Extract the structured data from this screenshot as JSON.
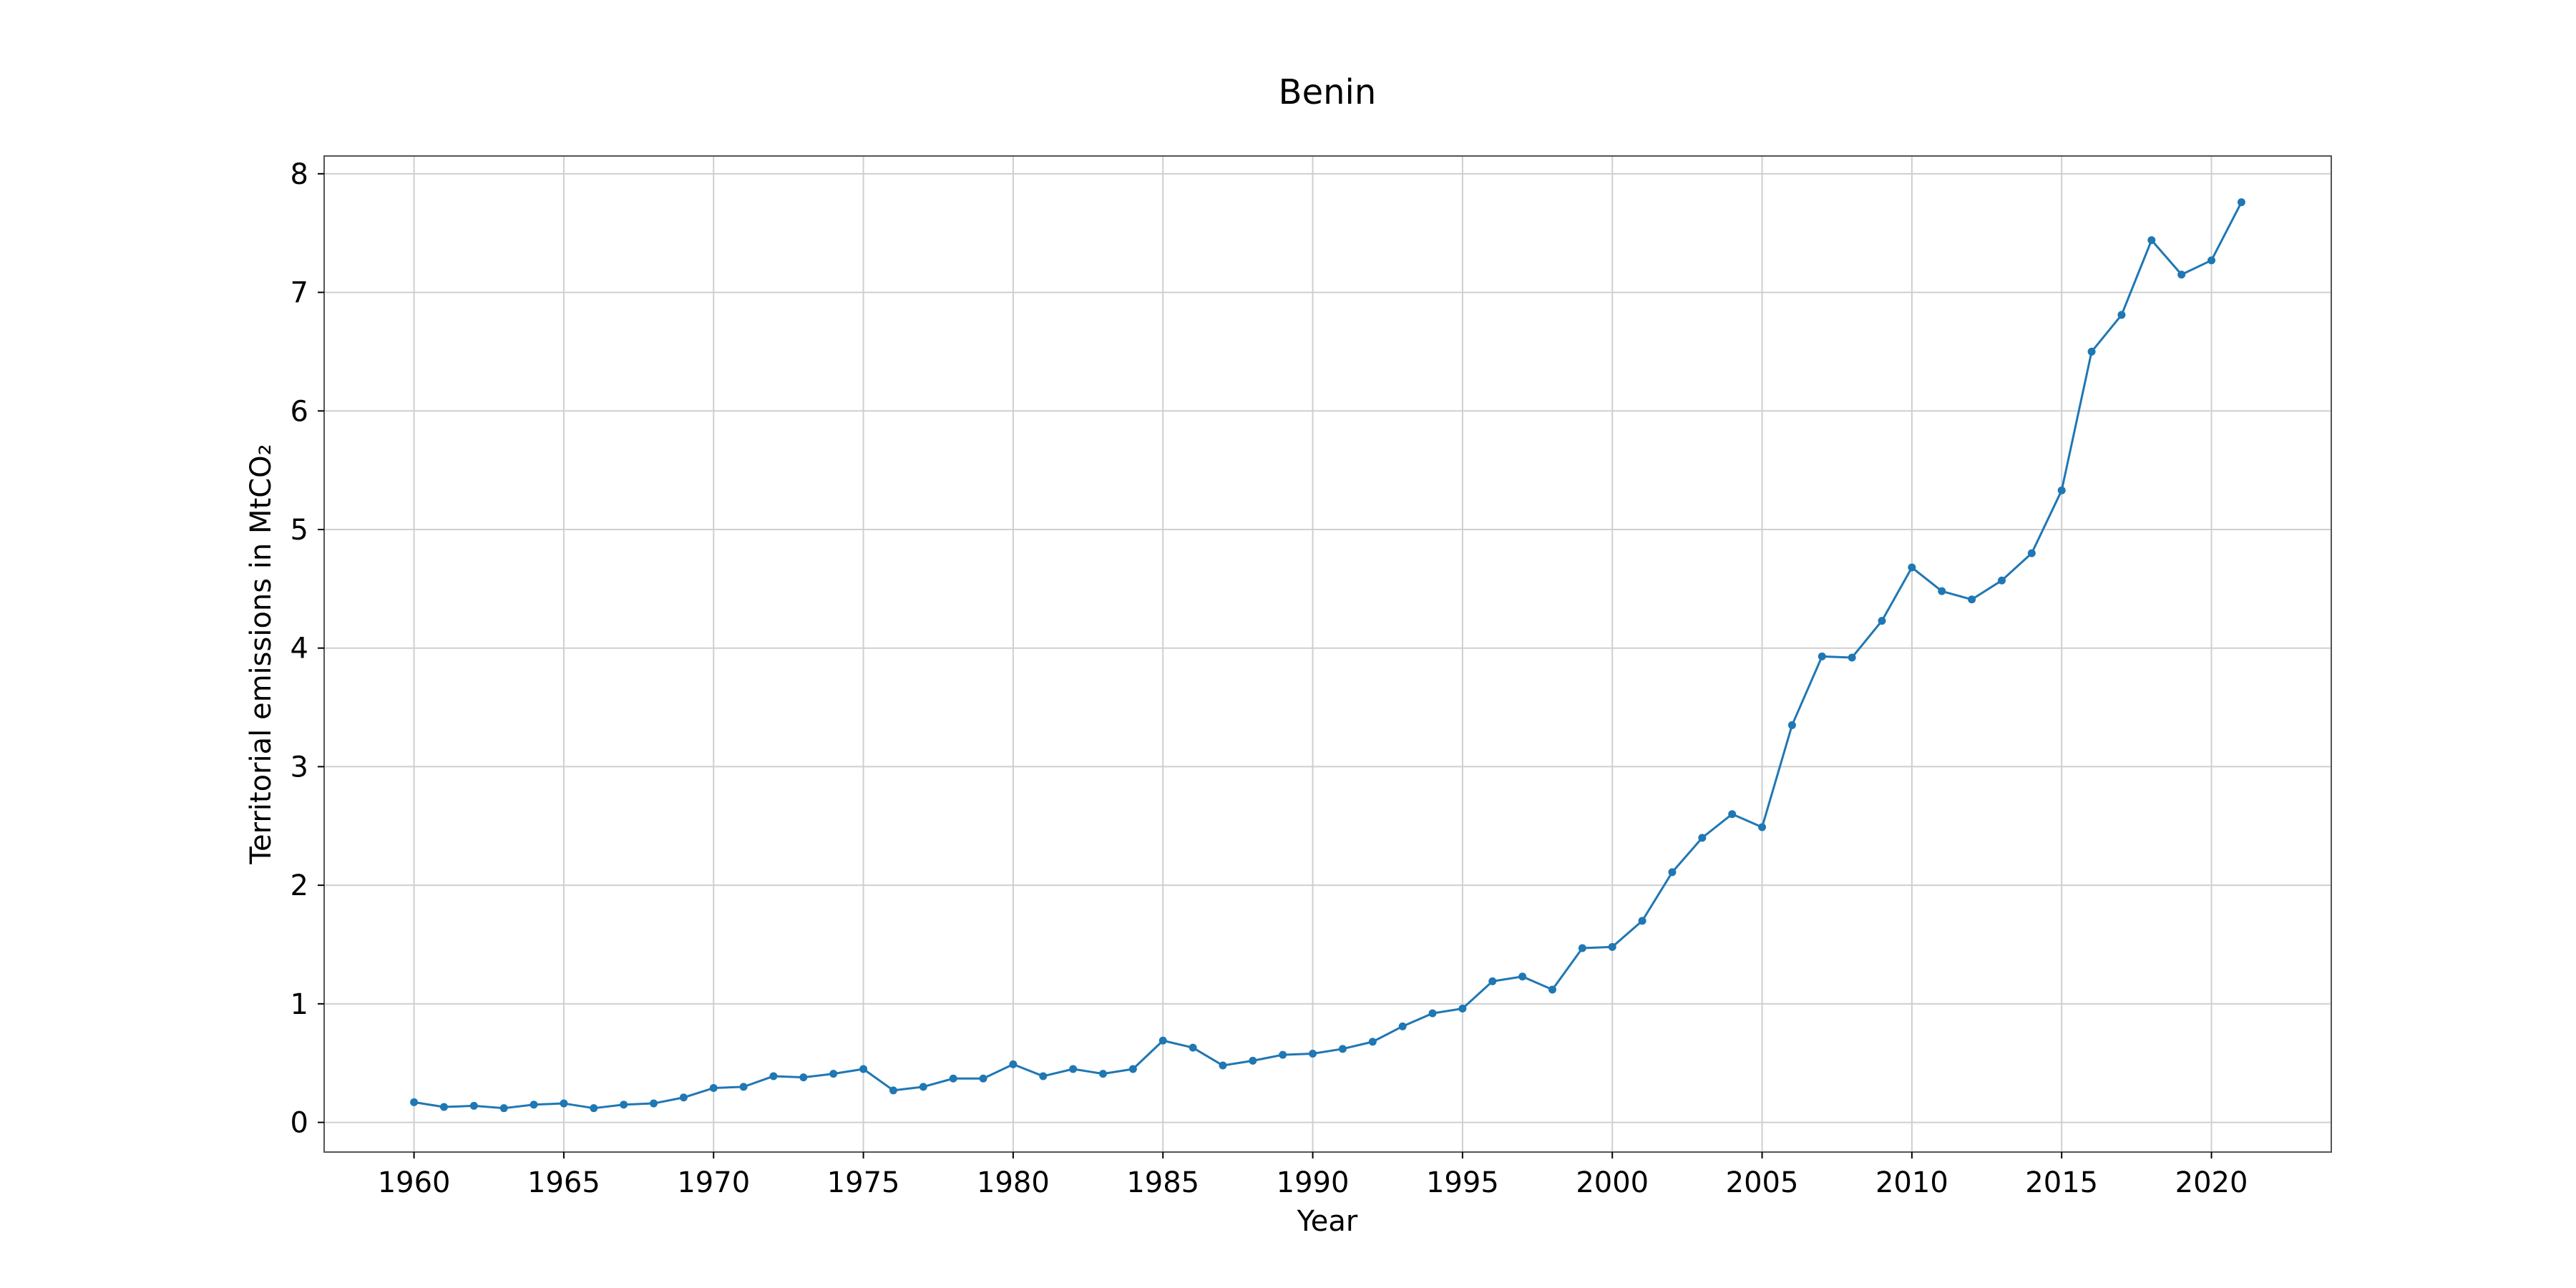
{
  "chart_data": {
    "type": "line",
    "title": "Benin",
    "xlabel": "Year",
    "ylabel": "Territorial emissions in MtCO₂",
    "xlim": [
      1957,
      2024
    ],
    "ylim": [
      -0.25,
      8.15
    ],
    "xticks": [
      1960,
      1965,
      1970,
      1975,
      1980,
      1985,
      1990,
      1995,
      2000,
      2005,
      2010,
      2015,
      2020
    ],
    "yticks": [
      0,
      1,
      2,
      3,
      4,
      5,
      6,
      7,
      8
    ],
    "grid": true,
    "legend": "none",
    "colors": {
      "series": "#1f77b4"
    },
    "series": [
      {
        "x": [
          1960,
          1961,
          1962,
          1963,
          1964,
          1965,
          1966,
          1967,
          1968,
          1969,
          1970,
          1971,
          1972,
          1973,
          1974,
          1975,
          1976,
          1977,
          1978,
          1979,
          1980,
          1981,
          1982,
          1983,
          1984,
          1985,
          1986,
          1987,
          1988,
          1989,
          1990,
          1991,
          1992,
          1993,
          1994,
          1995,
          1996,
          1997,
          1998,
          1999,
          2000,
          2001,
          2002,
          2003,
          2004,
          2005,
          2006,
          2007,
          2008,
          2009,
          2010,
          2011,
          2012,
          2013,
          2014,
          2015,
          2016,
          2017,
          2018,
          2019,
          2020,
          2021
        ],
        "values": [
          0.17,
          0.13,
          0.14,
          0.12,
          0.15,
          0.16,
          0.12,
          0.15,
          0.16,
          0.21,
          0.29,
          0.3,
          0.39,
          0.38,
          0.41,
          0.45,
          0.27,
          0.3,
          0.37,
          0.37,
          0.49,
          0.39,
          0.45,
          0.41,
          0.45,
          0.69,
          0.63,
          0.48,
          0.52,
          0.57,
          0.58,
          0.62,
          0.68,
          0.81,
          0.92,
          0.96,
          1.19,
          1.23,
          1.12,
          1.47,
          1.48,
          1.7,
          2.11,
          2.4,
          2.6,
          2.49,
          3.35,
          3.93,
          3.92,
          4.23,
          4.68,
          4.48,
          4.41,
          4.57,
          4.8,
          5.33,
          6.5,
          6.81,
          7.44,
          7.15,
          7.27,
          7.76
        ]
      }
    ]
  }
}
